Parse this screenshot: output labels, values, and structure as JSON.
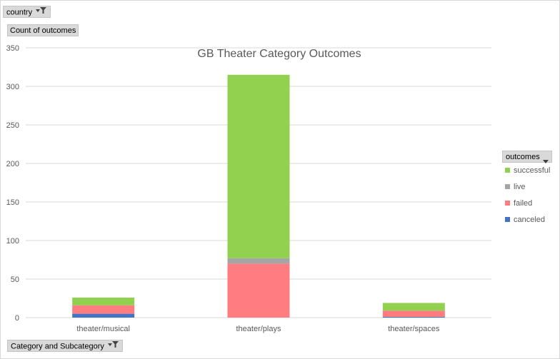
{
  "filters": {
    "country_label": "country",
    "count_label": "Count of outcomes",
    "category_label": "Category and Subcategory",
    "outcomes_label": "outcomes"
  },
  "colors": {
    "successful": "#92d050",
    "live": "#a5a5a5",
    "failed": "#ff7c80",
    "canceled": "#4472c4"
  },
  "chart_data": {
    "type": "bar",
    "stacked": true,
    "title": "GB Theater Category Outcomes",
    "categories": [
      "theater/musical",
      "theater/plays",
      "theater/spaces"
    ],
    "series": [
      {
        "name": "canceled",
        "values": [
          5,
          0,
          1
        ]
      },
      {
        "name": "failed",
        "values": [
          11,
          70,
          8
        ]
      },
      {
        "name": "live",
        "values": [
          0,
          7,
          0
        ]
      },
      {
        "name": "successful",
        "values": [
          10,
          238,
          10
        ]
      }
    ],
    "legend_order": [
      "successful",
      "live",
      "failed",
      "canceled"
    ],
    "ylim": [
      0,
      350
    ],
    "yticks": [
      0,
      50,
      100,
      150,
      200,
      250,
      300,
      350
    ],
    "grid": true,
    "legend_position": "right"
  }
}
